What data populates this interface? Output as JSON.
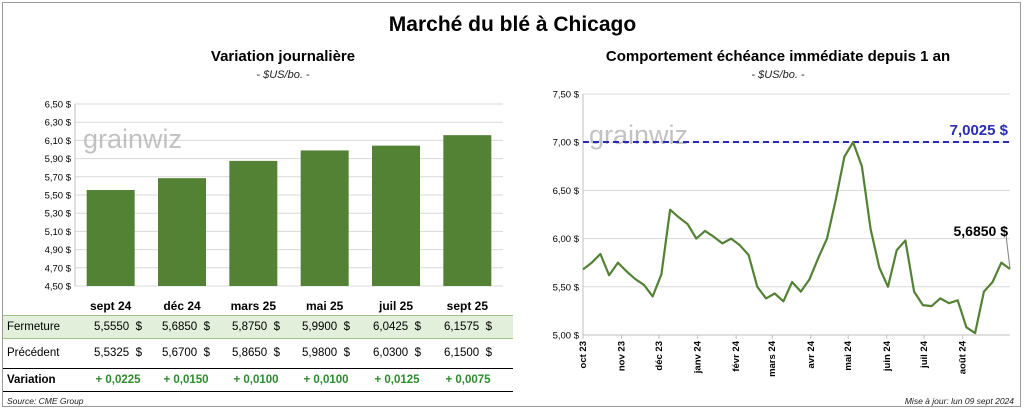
{
  "title": "Marché du blé à Chicago",
  "source": "Source: CME Group",
  "updated": "Mise à jour: lun 09 sept 2024",
  "watermark": "grainwiz",
  "left_chart": {
    "title": "Variation journalière",
    "unit": "- $US/bo. -"
  },
  "right_chart": {
    "title": "Comportement échéance immédiate depuis 1 an",
    "unit": "- $US/bo. -"
  },
  "table": {
    "rows": [
      {
        "label": "Fermeture",
        "values": [
          "5,5550",
          "5,6850",
          "5,8750",
          "5,9900",
          "6,0425",
          "6,1575"
        ],
        "suffix": "$"
      },
      {
        "label": "Précédent",
        "values": [
          "5,5325",
          "5,6700",
          "5,8650",
          "5,9800",
          "6,0300",
          "6,1500"
        ],
        "suffix": "$"
      },
      {
        "label": "Variation",
        "values": [
          "+ 0,0225",
          "+ 0,0150",
          "+ 0,0100",
          "+ 0,0100",
          "+ 0,0125",
          "+ 0,0075"
        ],
        "suffix": ""
      }
    ]
  },
  "chart_data": [
    {
      "type": "bar",
      "title": "Variation journalière",
      "ylabel": "- $US/bo. -",
      "categories": [
        "sept 24",
        "déc 24",
        "mars 25",
        "mai 25",
        "juil 25",
        "sept 25"
      ],
      "values": [
        5.555,
        5.685,
        5.875,
        5.99,
        6.0425,
        6.1575
      ],
      "ylim": [
        4.5,
        6.5
      ],
      "yticks": [
        "4,50 $",
        "4,70 $",
        "4,90 $",
        "5,10 $",
        "5,30 $",
        "5,50 $",
        "5,70 $",
        "5,90 $",
        "6,10 $",
        "6,30 $",
        "6,50 $"
      ],
      "color": "#548235",
      "grid": true
    },
    {
      "type": "line",
      "title": "Comportement échéance immédiate depuis 1 an",
      "ylabel": "- $US/bo. -",
      "x": [
        "2023-10-01",
        "2023-10-08",
        "2023-10-15",
        "2023-10-22",
        "2023-10-29",
        "2023-11-05",
        "2023-11-12",
        "2023-11-19",
        "2023-11-26",
        "2023-12-03",
        "2023-12-10",
        "2023-12-17",
        "2023-12-24",
        "2023-12-31",
        "2024-01-07",
        "2024-01-14",
        "2024-01-21",
        "2024-01-28",
        "2024-02-04",
        "2024-02-11",
        "2024-02-18",
        "2024-02-25",
        "2024-03-03",
        "2024-03-10",
        "2024-03-17",
        "2024-03-24",
        "2024-03-31",
        "2024-04-07",
        "2024-04-14",
        "2024-04-21",
        "2024-04-28",
        "2024-05-05",
        "2024-05-12",
        "2024-05-19",
        "2024-05-26",
        "2024-06-02",
        "2024-06-09",
        "2024-06-16",
        "2024-06-23",
        "2024-06-30",
        "2024-07-07",
        "2024-07-14",
        "2024-07-21",
        "2024-07-28",
        "2024-08-04",
        "2024-08-11",
        "2024-08-18",
        "2024-08-25",
        "2024-09-01",
        "2024-09-08"
      ],
      "values": [
        5.68,
        5.75,
        5.84,
        5.62,
        5.75,
        5.66,
        5.58,
        5.52,
        5.4,
        5.63,
        6.3,
        6.22,
        6.15,
        6.0,
        6.08,
        6.02,
        5.95,
        6.0,
        5.93,
        5.83,
        5.5,
        5.38,
        5.43,
        5.35,
        5.55,
        5.45,
        5.58,
        5.8,
        6.0,
        6.4,
        6.85,
        7.0,
        6.75,
        6.1,
        5.7,
        5.5,
        5.88,
        5.98,
        5.45,
        5.31,
        5.3,
        5.38,
        5.33,
        5.36,
        5.08,
        5.02,
        5.45,
        5.55,
        5.75,
        5.685
      ],
      "xticks": [
        "oct 23",
        "nov 23",
        "déc 23",
        "janv 24",
        "févr 24",
        "mars 24",
        "avr 24",
        "mai 24",
        "juin 24",
        "juil 24",
        "août 24"
      ],
      "ylim": [
        5.0,
        7.5
      ],
      "yticks": [
        "5,00 $",
        "5,50 $",
        "6,00 $",
        "6,50 $",
        "7,00 $",
        "7,50 $"
      ],
      "annotations": [
        {
          "label": "7,0025 $",
          "value": 7.0025,
          "color": "#2b2bb3"
        },
        {
          "label": "5,6850 $",
          "value": 5.685
        }
      ],
      "color": "#548235",
      "grid": true
    }
  ]
}
